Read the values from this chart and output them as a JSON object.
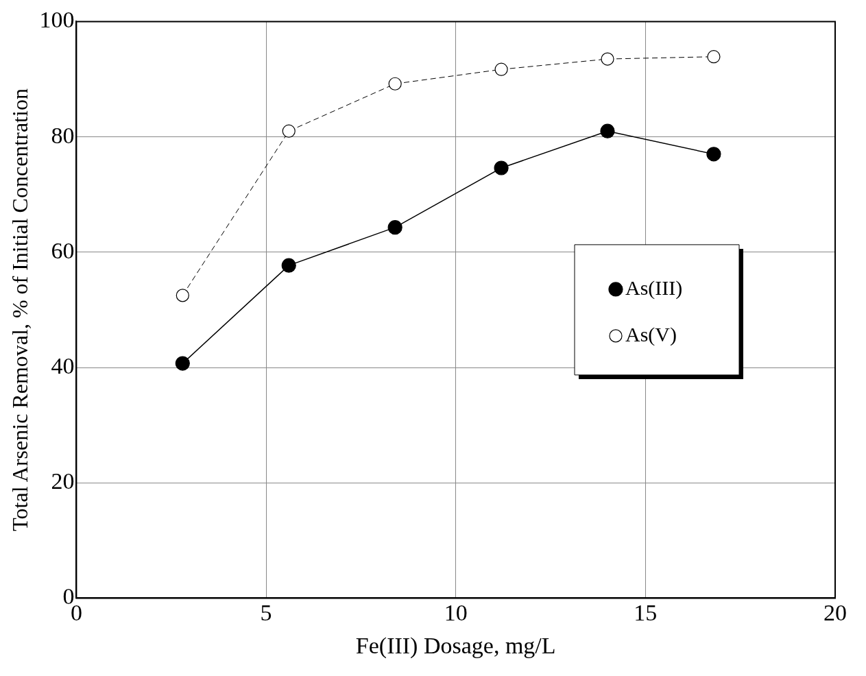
{
  "chart_data": {
    "type": "line",
    "xlabel": "Fe(III) Dosage, mg/L",
    "ylabel": "Total Arsenic Removal, % of Initial Concentration",
    "xlim": [
      0,
      20
    ],
    "xticks": [
      0,
      5,
      10,
      15,
      20
    ],
    "ylim": [
      0,
      100
    ],
    "yticks": [
      0,
      20,
      40,
      60,
      80,
      100
    ],
    "grid": true,
    "legend": "right",
    "marker": "circle",
    "x": [
      2.8,
      5.6,
      8.4,
      11.2,
      14,
      16.8
    ],
    "series": [
      {
        "name": "As(III)",
        "color": "#000000",
        "values": [
          40.7,
          57.7,
          64.3,
          74.6,
          81.0,
          77.0
        ],
        "line_style": "solid"
      },
      {
        "name": "As(V)",
        "color": "#000000",
        "values": [
          52.5,
          81.0,
          89.2,
          91.7,
          93.5,
          93.9
        ],
        "line_style": "dashed"
      }
    ]
  }
}
